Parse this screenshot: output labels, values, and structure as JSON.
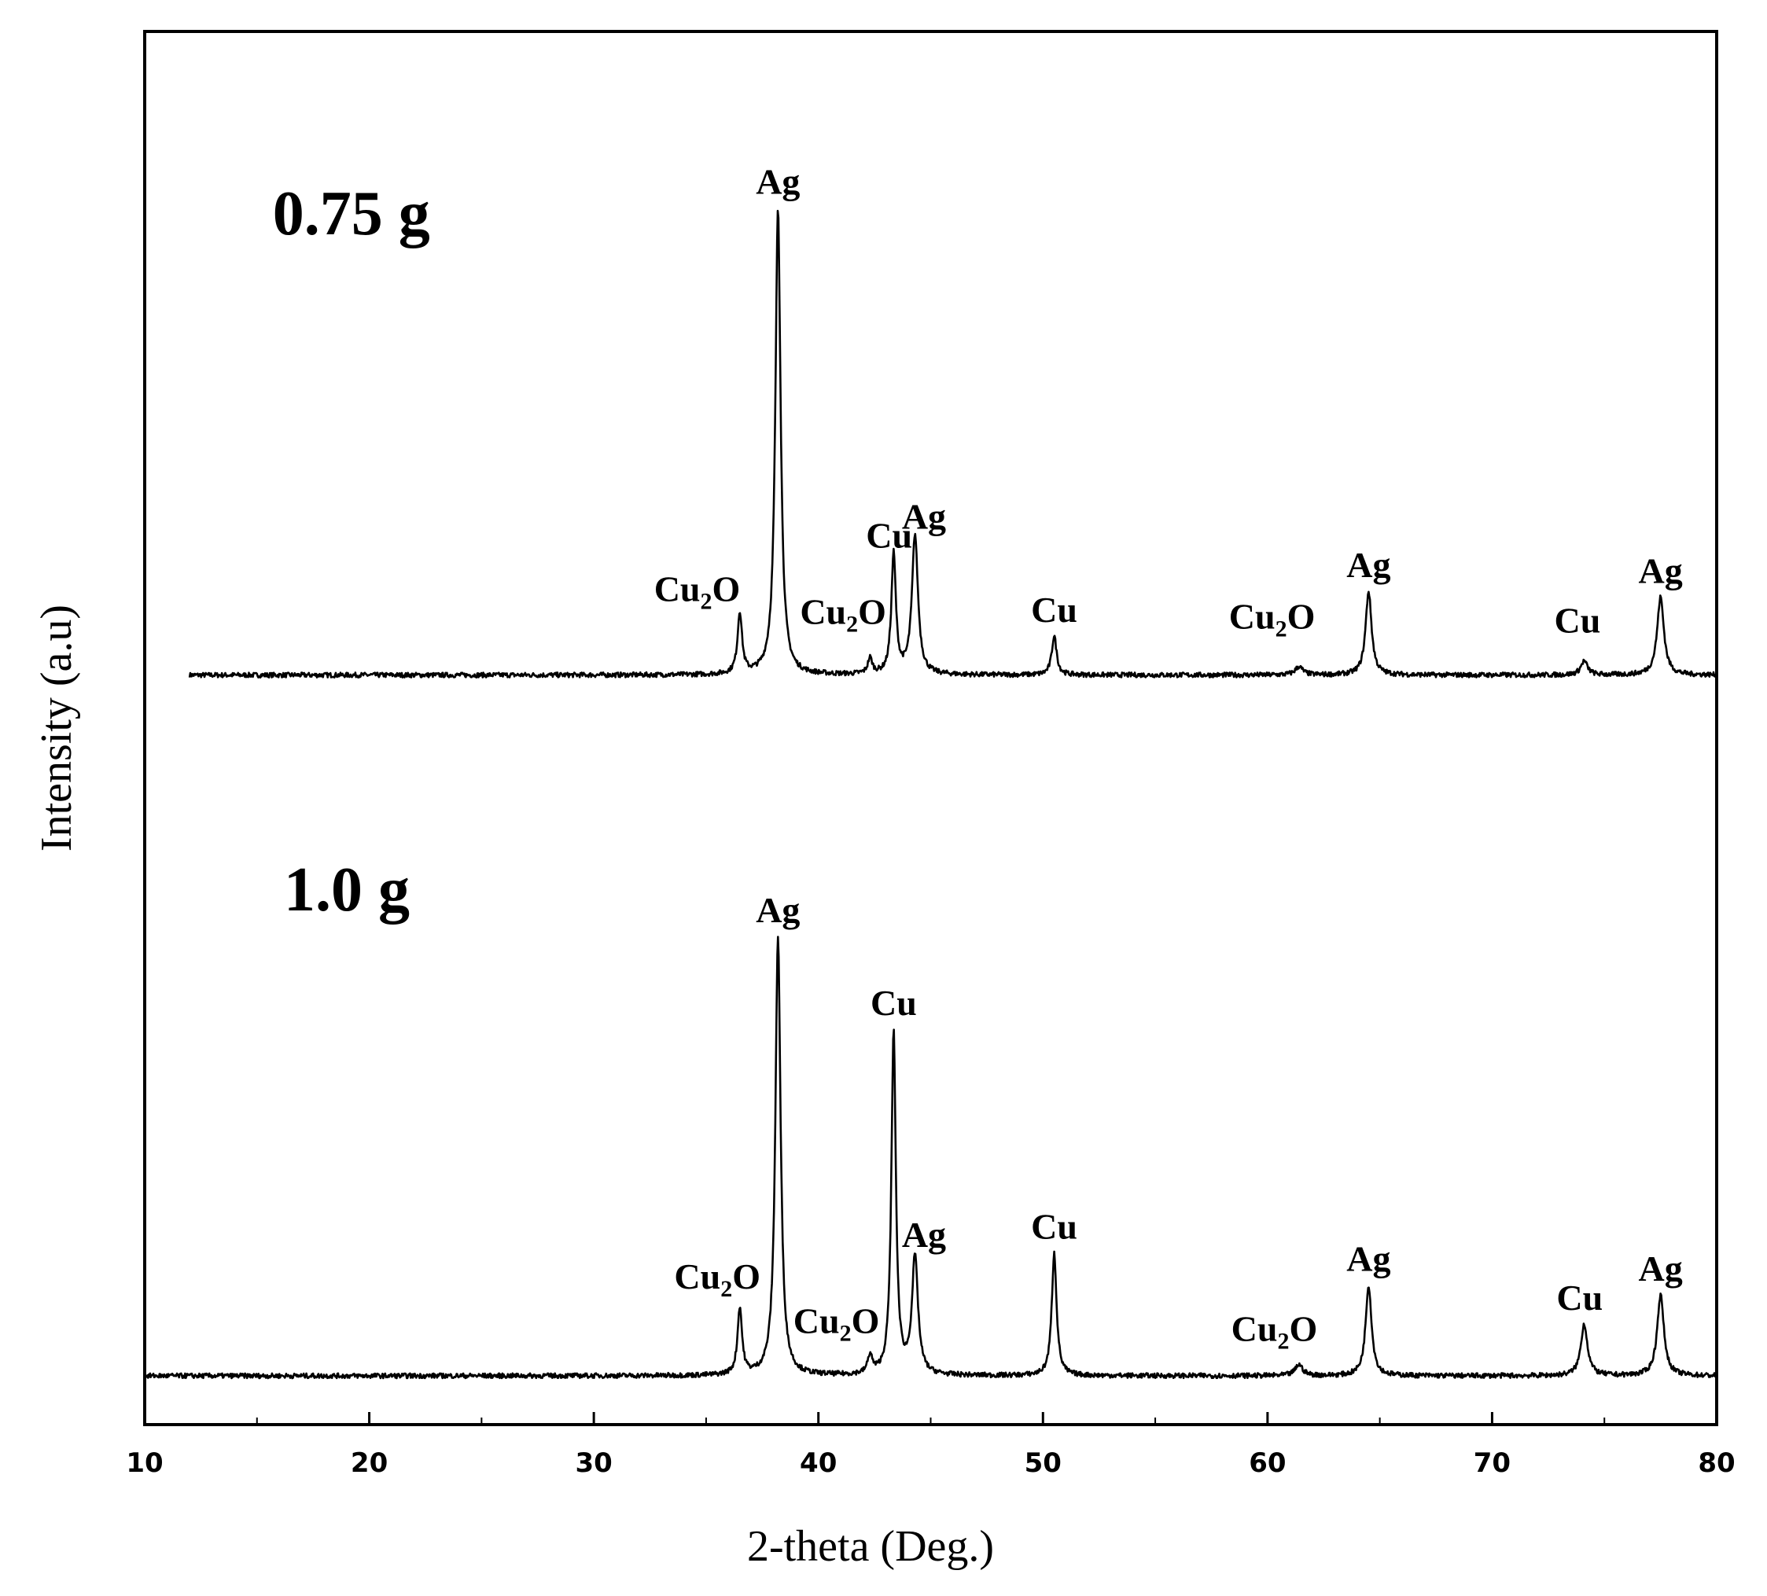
{
  "chart_data": {
    "type": "line",
    "title": "",
    "xlabel": "2-theta (Deg.)",
    "ylabel": "Intensity (a.u)",
    "xlim": [
      10,
      80
    ],
    "xticks": [
      10,
      20,
      30,
      40,
      50,
      60,
      70,
      80
    ],
    "xtick_labels": [
      "10",
      "20",
      "30",
      "40",
      "50",
      "60",
      "70",
      "80"
    ],
    "ylim": [
      0,
      100
    ],
    "grid": false,
    "legend": "none",
    "line_color": "#000000",
    "series": [
      {
        "name": "0.75 g",
        "baseline": 53.8,
        "peaks": [
          {
            "x": 36.5,
            "height": 4.4,
            "width": 0.12,
            "label": "Cu2O"
          },
          {
            "x": 38.2,
            "height": 33.5,
            "width": 0.14,
            "label": "Ag"
          },
          {
            "x": 42.3,
            "height": 1.1,
            "width": 0.12,
            "label": "Cu2O"
          },
          {
            "x": 43.35,
            "height": 8.6,
            "width": 0.12,
            "label": "Cu"
          },
          {
            "x": 44.3,
            "height": 10.0,
            "width": 0.16,
            "label": "Ag"
          },
          {
            "x": 50.5,
            "height": 2.8,
            "width": 0.13,
            "label": "Cu"
          },
          {
            "x": 61.4,
            "height": 0.6,
            "width": 0.2,
            "label": "Cu2O"
          },
          {
            "x": 64.5,
            "height": 6.0,
            "width": 0.16,
            "label": "Ag"
          },
          {
            "x": 74.1,
            "height": 1.0,
            "width": 0.18,
            "label": "Cu"
          },
          {
            "x": 77.5,
            "height": 5.6,
            "width": 0.18,
            "label": "Ag"
          }
        ]
      },
      {
        "name": "1.0 g",
        "baseline": 3.5,
        "peaks": [
          {
            "x": 36.5,
            "height": 4.8,
            "width": 0.12,
            "label": "Cu2O"
          },
          {
            "x": 38.2,
            "height": 31.5,
            "width": 0.14,
            "label": "Ag"
          },
          {
            "x": 42.3,
            "height": 1.3,
            "width": 0.12,
            "label": "Cu2O"
          },
          {
            "x": 43.35,
            "height": 24.6,
            "width": 0.12,
            "label": "Cu"
          },
          {
            "x": 44.3,
            "height": 8.4,
            "width": 0.16,
            "label": "Ag"
          },
          {
            "x": 50.5,
            "height": 8.8,
            "width": 0.13,
            "label": "Cu"
          },
          {
            "x": 61.4,
            "height": 0.8,
            "width": 0.2,
            "label": "Cu2O"
          },
          {
            "x": 64.5,
            "height": 6.5,
            "width": 0.16,
            "label": "Ag"
          },
          {
            "x": 74.1,
            "height": 3.7,
            "width": 0.18,
            "label": "Cu"
          },
          {
            "x": 77.5,
            "height": 5.8,
            "width": 0.18,
            "label": "Ag"
          }
        ]
      }
    ]
  }
}
